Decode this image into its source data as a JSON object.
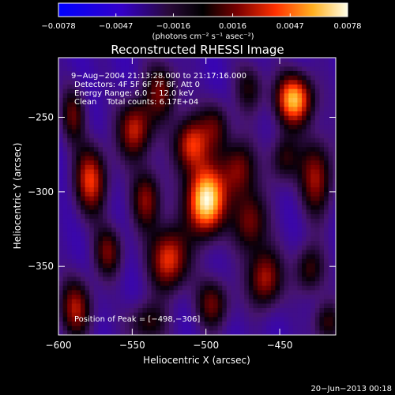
{
  "chart_data": {
    "type": "heatmap",
    "title": "Reconstructed RHESSI Image",
    "xlabel": "Heliocentric X (arcsec)",
    "ylabel": "Heliocentric Y (arcsec)",
    "xlim": [
      -600,
      -412
    ],
    "ylim": [
      -396,
      -210
    ],
    "xticks": [
      -600,
      -550,
      -500,
      -450
    ],
    "yticks": [
      -250,
      -300,
      -350
    ],
    "xtick_labels": [
      "−600",
      "−550",
      "−500",
      "−450"
    ],
    "ytick_labels": [
      "−250",
      "−300",
      "−350"
    ],
    "colorbar": {
      "range": [
        -0.0078,
        0.0078
      ],
      "ticks": [
        -0.0078,
        -0.0047,
        -0.0016,
        0.0016,
        0.0047,
        0.0078
      ],
      "tick_labels": [
        "−0.0078",
        "−0.0047",
        "−0.0016",
        "0.0016",
        "0.0047",
        "0.0078"
      ],
      "unit_label": "(photons cm⁻² s⁻¹ asec⁻²)"
    },
    "annotations": {
      "time_range": "9−Aug−2004 21:13:28.000 to 21:17:16.000",
      "detectors": "Detectors: 4F 5F 6F 7F 8F, Att 0",
      "energy": "Energy Range: 6.0 − 12.0 keV",
      "clean": "Clean    Total counts: 6.17E+04",
      "peak": "Position of Peak = [−498,−306]"
    },
    "peak_position": [
      -498,
      -306
    ],
    "blobs": [
      {
        "x": -500,
        "y": -306,
        "sx": 9,
        "sy": 16,
        "amp": 1.0
      },
      {
        "x": -510,
        "y": -268,
        "sx": 8,
        "sy": 13,
        "amp": 0.62
      },
      {
        "x": -493,
        "y": -256,
        "sx": 7,
        "sy": 12,
        "amp": 0.35
      },
      {
        "x": -478,
        "y": -285,
        "sx": 8,
        "sy": 14,
        "amp": 0.48
      },
      {
        "x": -470,
        "y": -320,
        "sx": 8,
        "sy": 14,
        "amp": 0.46
      },
      {
        "x": -440,
        "y": -238,
        "sx": 9,
        "sy": 12,
        "amp": 0.82
      },
      {
        "x": -447,
        "y": -278,
        "sx": 7,
        "sy": 12,
        "amp": 0.35
      },
      {
        "x": -425,
        "y": -290,
        "sx": 8,
        "sy": 18,
        "amp": 0.5
      },
      {
        "x": -530,
        "y": -232,
        "sx": 8,
        "sy": 14,
        "amp": 0.42
      },
      {
        "x": -548,
        "y": -258,
        "sx": 8,
        "sy": 14,
        "amp": 0.58
      },
      {
        "x": -540,
        "y": -305,
        "sx": 7,
        "sy": 14,
        "amp": 0.48
      },
      {
        "x": -525,
        "y": -345,
        "sx": 9,
        "sy": 15,
        "amp": 0.65
      },
      {
        "x": -578,
        "y": -292,
        "sx": 8,
        "sy": 16,
        "amp": 0.6
      },
      {
        "x": -590,
        "y": -248,
        "sx": 6,
        "sy": 13,
        "amp": 0.38
      },
      {
        "x": -566,
        "y": -340,
        "sx": 7,
        "sy": 12,
        "amp": 0.42
      },
      {
        "x": -588,
        "y": -378,
        "sx": 8,
        "sy": 14,
        "amp": 0.5
      },
      {
        "x": -540,
        "y": -388,
        "sx": 9,
        "sy": 10,
        "amp": 0.35
      },
      {
        "x": -495,
        "y": -375,
        "sx": 8,
        "sy": 12,
        "amp": 0.42
      },
      {
        "x": -460,
        "y": -358,
        "sx": 8,
        "sy": 14,
        "amp": 0.55
      },
      {
        "x": -430,
        "y": -352,
        "sx": 7,
        "sy": 12,
        "amp": 0.38
      },
      {
        "x": -418,
        "y": -388,
        "sx": 7,
        "sy": 10,
        "amp": 0.35
      },
      {
        "x": -470,
        "y": -230,
        "sx": 7,
        "sy": 12,
        "amp": 0.3
      }
    ]
  },
  "footer": {
    "timestamp": "20−Jun−2013 00:18"
  }
}
